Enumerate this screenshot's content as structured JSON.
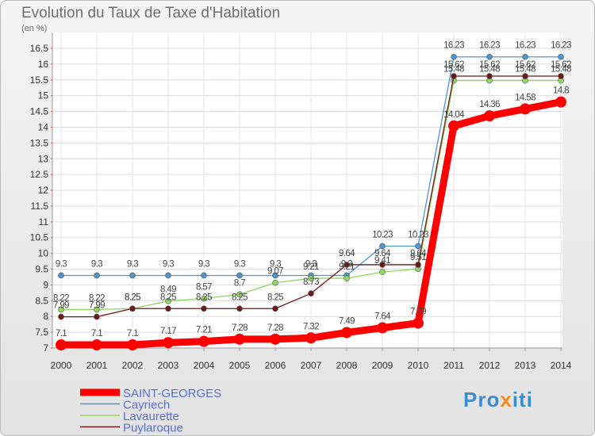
{
  "title": "Evolution du Taux de Taxe d'Habitation",
  "subtitle": "(en %)",
  "logo": {
    "part1": "Pro",
    "part2": "x",
    "part3": "iti"
  },
  "chart_data": {
    "type": "line",
    "title": "Evolution du Taux de Taxe d'Habitation",
    "ylabel": "(en %)",
    "xlabel": "",
    "ylim": [
      7,
      16.5
    ],
    "y_tick_step": 0.5,
    "grid": true,
    "legend_position": "bottom-left",
    "x": [
      "2000",
      "2001",
      "2002",
      "2003",
      "2004",
      "2005",
      "2006",
      "2007",
      "2008",
      "2009",
      "2010",
      "2011",
      "2012",
      "2013",
      "2014"
    ],
    "series": [
      {
        "name": "SAINT-GEORGES",
        "color": "#ff0000",
        "values": [
          7.1,
          7.1,
          7.1,
          7.17,
          7.21,
          7.28,
          7.28,
          7.32,
          7.49,
          7.64,
          7.79,
          14.04,
          14.36,
          14.58,
          14.8
        ]
      },
      {
        "name": "Cayriech",
        "color": "#4f94cd",
        "values": [
          9.3,
          9.3,
          9.3,
          9.3,
          9.3,
          9.3,
          9.3,
          9.3,
          9.3,
          10.23,
          10.23,
          16.23,
          16.23,
          16.23,
          16.23
        ]
      },
      {
        "name": "Lavaurette",
        "color": "#90d860",
        "values": [
          8.22,
          8.22,
          8.25,
          8.49,
          8.57,
          8.7,
          9.07,
          9.21,
          9.21,
          9.41,
          9.51,
          15.48,
          15.48,
          15.48,
          15.48
        ]
      },
      {
        "name": "Puylaroque",
        "color": "#6b1a1a",
        "values": [
          7.99,
          7.99,
          8.25,
          8.25,
          8.25,
          8.25,
          8.25,
          8.73,
          9.64,
          9.64,
          9.64,
          15.62,
          15.62,
          15.62,
          15.62
        ]
      }
    ],
    "data_labels": [
      {
        "series": 0,
        "labels": [
          "7.1",
          "7.1",
          "7.1",
          "7.17",
          "7.21",
          "7.28",
          "7.28",
          "7.32",
          "7.49",
          "7.64",
          "7.79",
          "14.04",
          "14.36",
          "14.58",
          "14.8"
        ]
      },
      {
        "series": 1,
        "labels": [
          "9.3",
          "9.3",
          "9.3",
          "9.3",
          "9.3",
          "9.3",
          "9.3",
          "9.3",
          "9.3",
          "10.23",
          "10.23",
          "16.23",
          "16.23",
          "16.23",
          "16.23"
        ]
      },
      {
        "series": 2,
        "labels": [
          "8.22",
          "8.22",
          "8.25",
          "8.49",
          "8.57",
          "8.7",
          "9.07",
          "9.21",
          "9.21",
          "9.41",
          "9.51",
          "15.48",
          "15.48",
          "15.48",
          "15.48"
        ]
      },
      {
        "series": 3,
        "labels": [
          "7.99",
          "7.99",
          "8.25",
          "8.25",
          "8.25",
          "8.25",
          "8.25",
          "8.73",
          "9.64",
          "9.64",
          "9.64",
          "15.62",
          "15.62",
          "15.62",
          "15.62"
        ]
      }
    ]
  }
}
